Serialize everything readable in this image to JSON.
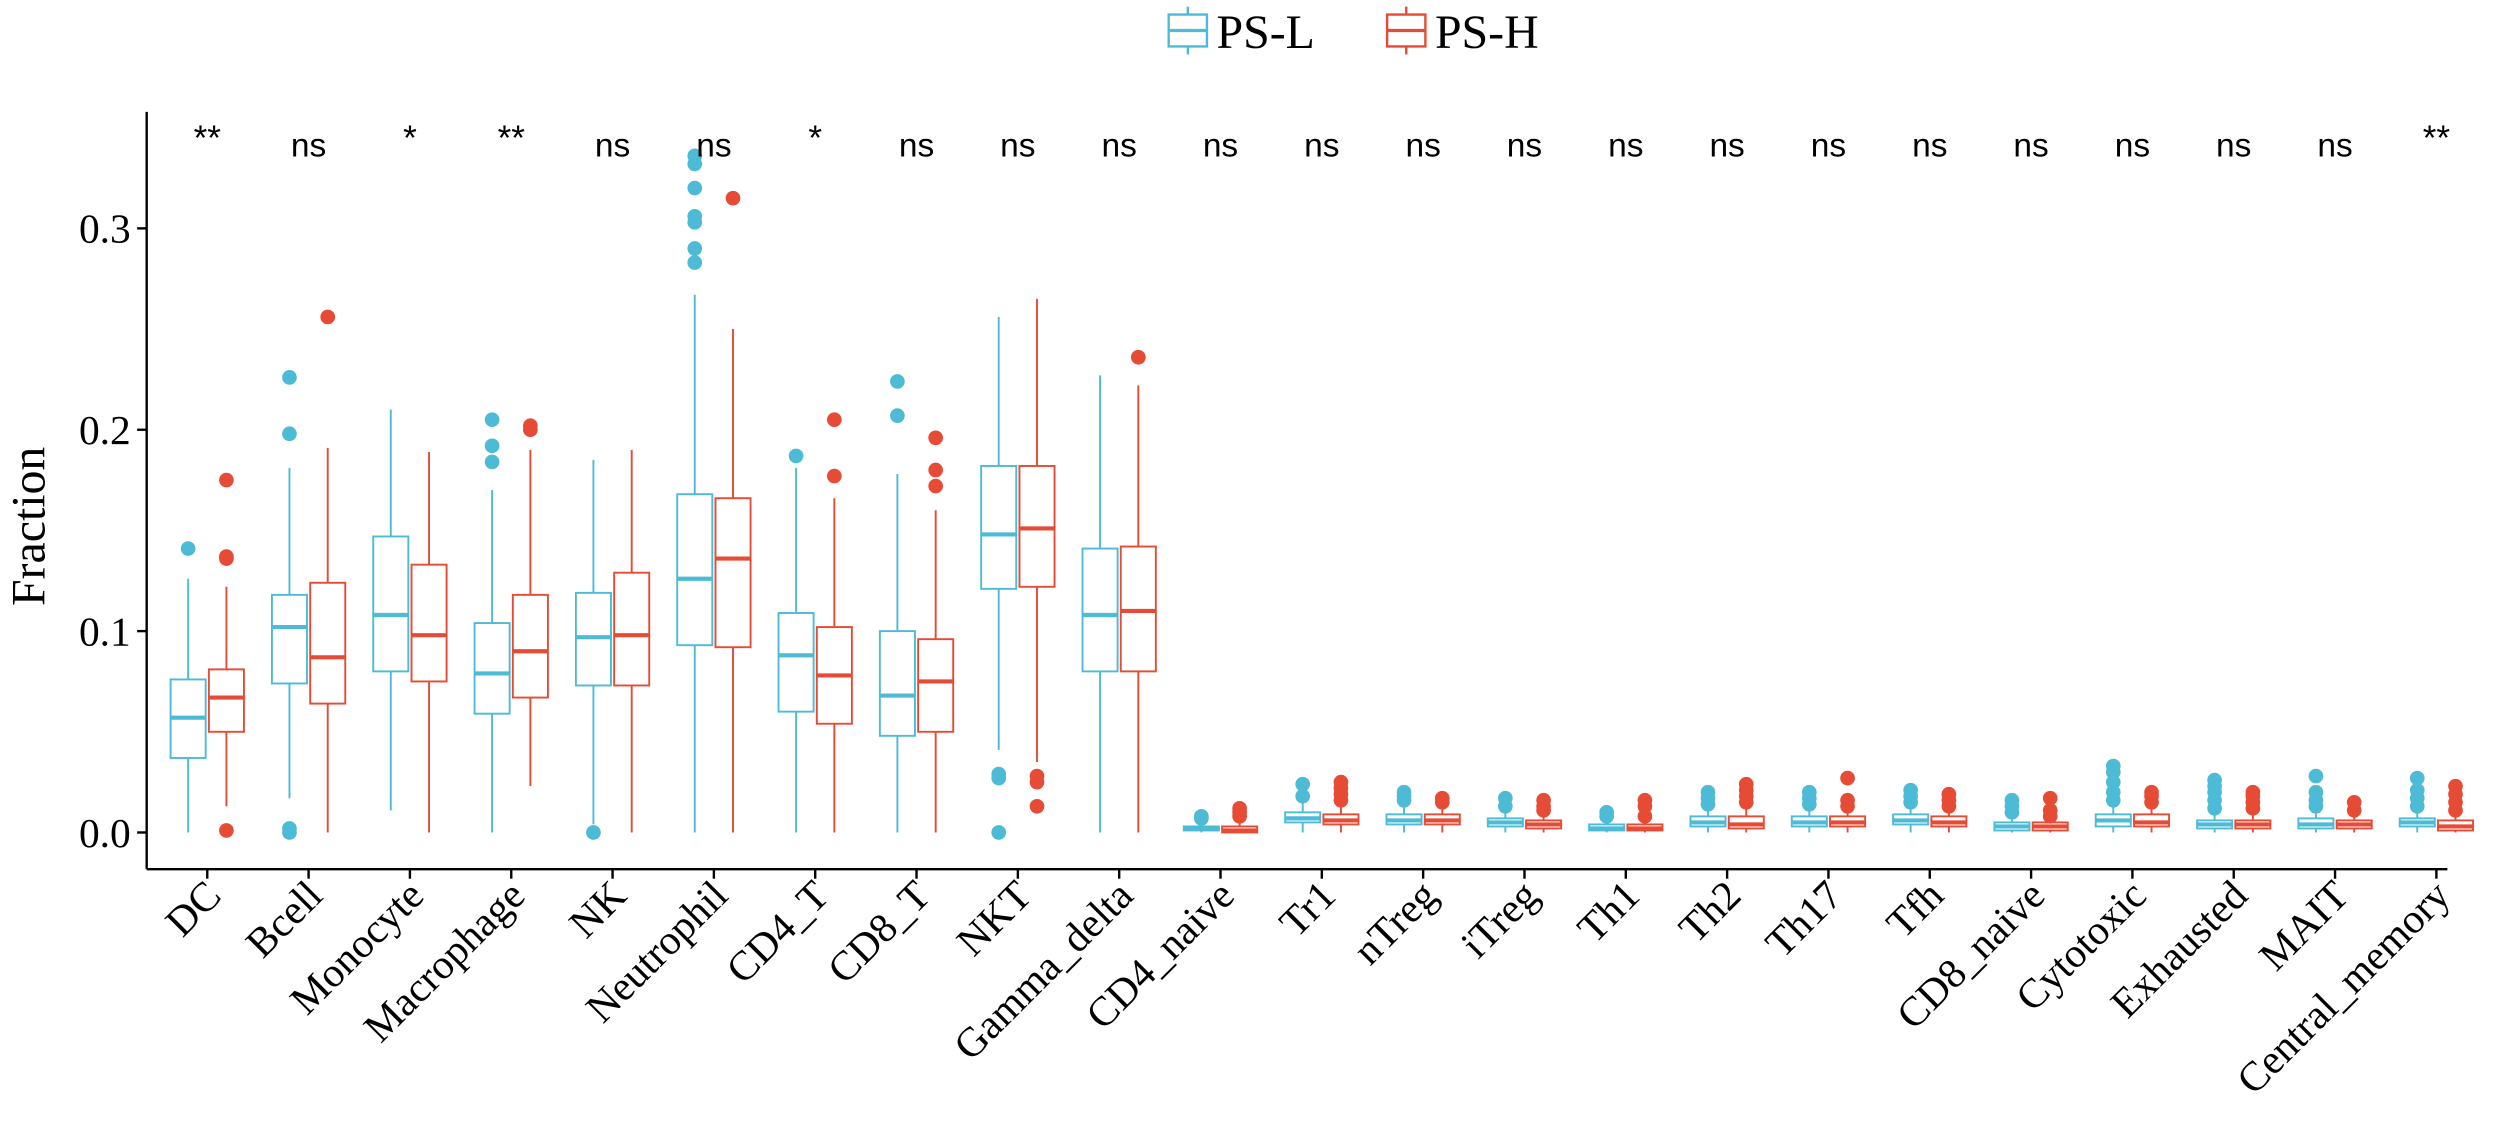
{
  "chart_data": {
    "type": "box",
    "title": "",
    "xlabel": "",
    "ylabel": "Fraction",
    "ylim": [
      -0.017,
      0.35
    ],
    "yticks": [
      0.0,
      0.1,
      0.2,
      0.3
    ],
    "ytick_labels": [
      "0.0",
      "0.1",
      "0.2",
      "0.3"
    ],
    "grid": false,
    "legend": {
      "placement": "top-center",
      "entries": [
        "PS-L",
        "PS-H"
      ]
    },
    "colors": {
      "PS-L": "#4DBBD5",
      "PS-H": "#E64B35"
    },
    "categories": [
      "DC",
      "Bcell",
      "Monocyte",
      "Macrophage",
      "NK",
      "Neutrophil",
      "CD4_T",
      "CD8_T",
      "NKT",
      "Gamma_delta",
      "CD4_naive",
      "Tr1",
      "nTreg",
      "iTreg",
      "Th1",
      "Th2",
      "Th17",
      "Tfh",
      "CD8_naive",
      "Cytotoxic",
      "Exhausted",
      "MAIT",
      "Central_memory"
    ],
    "significance": [
      "**",
      "ns",
      "*",
      "**",
      "ns",
      "ns",
      "*",
      "ns",
      "ns",
      "ns",
      "ns",
      "ns",
      "ns",
      "ns",
      "ns",
      "ns",
      "ns",
      "ns",
      "ns",
      "ns",
      "ns",
      "ns",
      "**"
    ],
    "series": [
      {
        "name": "PS-L",
        "boxes": [
          {
            "q1": 0.037,
            "median": 0.057,
            "q3": 0.076,
            "low": 0,
            "high": 0.126,
            "outliers": [
              0.141
            ]
          },
          {
            "q1": 0.074,
            "median": 0.102,
            "q3": 0.118,
            "low": 0.017,
            "high": 0.181,
            "outliers": [
              0,
              0.002,
              0.198,
              0.226
            ]
          },
          {
            "q1": 0.08,
            "median": 0.108,
            "q3": 0.147,
            "low": 0.011,
            "high": 0.21,
            "outliers": []
          },
          {
            "q1": 0.059,
            "median": 0.079,
            "q3": 0.104,
            "low": 0,
            "high": 0.17,
            "outliers": [
              0.184,
              0.192,
              0.205
            ]
          },
          {
            "q1": 0.073,
            "median": 0.097,
            "q3": 0.119,
            "low": 0.004,
            "high": 0.185,
            "outliers": [
              0
            ]
          },
          {
            "q1": 0.093,
            "median": 0.126,
            "q3": 0.168,
            "low": 0,
            "high": 0.267,
            "outliers": [
              0.283,
              0.29,
              0.303,
              0.306,
              0.32,
              0.332,
              0.336
            ]
          },
          {
            "q1": 0.06,
            "median": 0.088,
            "q3": 0.109,
            "low": 0,
            "high": 0.181,
            "outliers": [
              0.187
            ]
          },
          {
            "q1": 0.048,
            "median": 0.068,
            "q3": 0.1,
            "low": 0,
            "high": 0.178,
            "outliers": [
              0.207,
              0.224
            ]
          },
          {
            "q1": 0.121,
            "median": 0.148,
            "q3": 0.182,
            "low": 0.041,
            "high": 0.256,
            "outliers": [
              0,
              0.027,
              0.029
            ]
          },
          {
            "q1": 0.08,
            "median": 0.108,
            "q3": 0.141,
            "low": 0,
            "high": 0.227,
            "outliers": []
          },
          {
            "q1": 0.001,
            "median": 0.002,
            "q3": 0.003,
            "low": 0,
            "high": 0.005,
            "outliers": [
              0.007,
              0.008
            ]
          },
          {
            "q1": 0.005,
            "median": 0.007,
            "q3": 0.01,
            "low": 0,
            "high": 0.015,
            "outliers": [
              0.018,
              0.024
            ]
          },
          {
            "q1": 0.004,
            "median": 0.006,
            "q3": 0.009,
            "low": 0,
            "high": 0.014,
            "outliers": [
              0.016,
              0.018,
              0.02
            ]
          },
          {
            "q1": 0.003,
            "median": 0.005,
            "q3": 0.007,
            "low": 0,
            "high": 0.011,
            "outliers": [
              0.013,
              0.017
            ]
          },
          {
            "q1": 0.001,
            "median": 0.002,
            "q3": 0.004,
            "low": 0,
            "high": 0.006,
            "outliers": [
              0.008,
              0.01
            ]
          },
          {
            "q1": 0.003,
            "median": 0.005,
            "q3": 0.008,
            "low": 0,
            "high": 0.012,
            "outliers": [
              0.014,
              0.017,
              0.02
            ]
          },
          {
            "q1": 0.003,
            "median": 0.005,
            "q3": 0.008,
            "low": 0,
            "high": 0.012,
            "outliers": [
              0.014,
              0.017,
              0.02
            ]
          },
          {
            "q1": 0.004,
            "median": 0.006,
            "q3": 0.009,
            "low": 0,
            "high": 0.013,
            "outliers": [
              0.015,
              0.018,
              0.021
            ]
          },
          {
            "q1": 0.001,
            "median": 0.003,
            "q3": 0.005,
            "low": 0,
            "high": 0.008,
            "outliers": [
              0.01,
              0.013,
              0.016
            ]
          },
          {
            "q1": 0.003,
            "median": 0.006,
            "q3": 0.009,
            "low": 0,
            "high": 0.013,
            "outliers": [
              0.016,
              0.02,
              0.025,
              0.03,
              0.033
            ]
          },
          {
            "q1": 0.002,
            "median": 0.004,
            "q3": 0.006,
            "low": 0,
            "high": 0.01,
            "outliers": [
              0.012,
              0.016,
              0.02,
              0.023,
              0.026
            ]
          },
          {
            "q1": 0.002,
            "median": 0.004,
            "q3": 0.007,
            "low": 0,
            "high": 0.011,
            "outliers": [
              0.013,
              0.016,
              0.02,
              0.028
            ]
          },
          {
            "q1": 0.003,
            "median": 0.005,
            "q3": 0.007,
            "low": 0,
            "high": 0.011,
            "outliers": [
              0.013,
              0.017,
              0.021,
              0.027
            ]
          }
        ]
      },
      {
        "name": "PS-H",
        "boxes": [
          {
            "q1": 0.05,
            "median": 0.067,
            "q3": 0.081,
            "low": 0.013,
            "high": 0.122,
            "outliers": [
              0.001,
              0.136,
              0.137,
              0.175
            ]
          },
          {
            "q1": 0.064,
            "median": 0.087,
            "q3": 0.124,
            "low": 0,
            "high": 0.191,
            "outliers": [
              0.256
            ]
          },
          {
            "q1": 0.075,
            "median": 0.098,
            "q3": 0.133,
            "low": 0,
            "high": 0.189,
            "outliers": []
          },
          {
            "q1": 0.067,
            "median": 0.09,
            "q3": 0.118,
            "low": 0.023,
            "high": 0.19,
            "outliers": [
              0.2,
              0.202
            ]
          },
          {
            "q1": 0.073,
            "median": 0.098,
            "q3": 0.129,
            "low": 0,
            "high": 0.19,
            "outliers": []
          },
          {
            "q1": 0.092,
            "median": 0.136,
            "q3": 0.166,
            "low": 0,
            "high": 0.25,
            "outliers": [
              0.315
            ]
          },
          {
            "q1": 0.054,
            "median": 0.078,
            "q3": 0.102,
            "low": 0,
            "high": 0.166,
            "outliers": [
              0.177,
              0.205
            ]
          },
          {
            "q1": 0.05,
            "median": 0.075,
            "q3": 0.096,
            "low": 0,
            "high": 0.16,
            "outliers": [
              0.172,
              0.18,
              0.196
            ]
          },
          {
            "q1": 0.122,
            "median": 0.151,
            "q3": 0.182,
            "low": 0.035,
            "high": 0.265,
            "outliers": [
              0.013,
              0.025,
              0.028
            ]
          },
          {
            "q1": 0.08,
            "median": 0.11,
            "q3": 0.142,
            "low": 0,
            "high": 0.222,
            "outliers": [
              0.236
            ]
          },
          {
            "q1": 0.0,
            "median": 0.001,
            "q3": 0.003,
            "low": 0,
            "high": 0.006,
            "outliers": [
              0.008,
              0.01,
              0.012
            ]
          },
          {
            "q1": 0.004,
            "median": 0.006,
            "q3": 0.009,
            "low": 0,
            "high": 0.014,
            "outliers": [
              0.016,
              0.019,
              0.022,
              0.025
            ]
          },
          {
            "q1": 0.004,
            "median": 0.006,
            "q3": 0.009,
            "low": 0,
            "high": 0.013,
            "outliers": [
              0.015,
              0.017
            ]
          },
          {
            "q1": 0.002,
            "median": 0.004,
            "q3": 0.006,
            "low": 0,
            "high": 0.01,
            "outliers": [
              0.011,
              0.013,
              0.016
            ]
          },
          {
            "q1": 0.001,
            "median": 0.002,
            "q3": 0.004,
            "low": 0,
            "high": 0.006,
            "outliers": [
              0.008,
              0.013,
              0.016
            ]
          },
          {
            "q1": 0.002,
            "median": 0.004,
            "q3": 0.008,
            "low": 0,
            "high": 0.013,
            "outliers": [
              0.015,
              0.018,
              0.021,
              0.024
            ]
          },
          {
            "q1": 0.003,
            "median": 0.005,
            "q3": 0.008,
            "low": 0,
            "high": 0.012,
            "outliers": [
              0.013,
              0.016,
              0.027
            ]
          },
          {
            "q1": 0.003,
            "median": 0.005,
            "q3": 0.008,
            "low": 0,
            "high": 0.011,
            "outliers": [
              0.013,
              0.016,
              0.019
            ]
          },
          {
            "q1": 0.001,
            "median": 0.003,
            "q3": 0.005,
            "low": 0,
            "high": 0.007,
            "outliers": [
              0.008,
              0.011,
              0.017
            ]
          },
          {
            "q1": 0.003,
            "median": 0.005,
            "q3": 0.009,
            "low": 0,
            "high": 0.012,
            "outliers": [
              0.015,
              0.018,
              0.02
            ]
          },
          {
            "q1": 0.002,
            "median": 0.004,
            "q3": 0.006,
            "low": 0,
            "high": 0.01,
            "outliers": [
              0.012,
              0.015,
              0.018,
              0.02
            ]
          },
          {
            "q1": 0.002,
            "median": 0.004,
            "q3": 0.006,
            "low": 0,
            "high": 0.009,
            "outliers": [
              0.011,
              0.015
            ]
          },
          {
            "q1": 0.001,
            "median": 0.003,
            "q3": 0.006,
            "low": 0,
            "high": 0.009,
            "outliers": [
              0.011,
              0.015,
              0.019,
              0.023
            ]
          }
        ]
      }
    ]
  }
}
